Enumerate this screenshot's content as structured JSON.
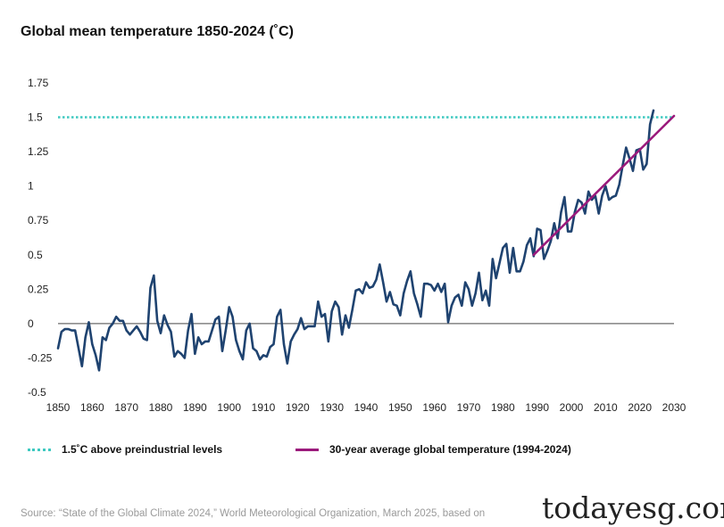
{
  "title": "Global mean temperature 1850-2024 (˚C)",
  "chart_data": {
    "type": "line",
    "title": "Global mean temperature 1850-2024 (˚C)",
    "xlabel": "",
    "ylabel": "",
    "xlim": [
      1850,
      2030
    ],
    "ylim": [
      -0.5,
      1.75
    ],
    "x_ticks": [
      "1850",
      "1860",
      "1870",
      "1880",
      "1890",
      "1900",
      "1910",
      "1920",
      "1930",
      "1940",
      "1950",
      "1960",
      "1970",
      "1980",
      "1990",
      "2000",
      "2010",
      "2020",
      "2030"
    ],
    "y_ticks": [
      "1.75",
      "1.5",
      "1.25",
      "1",
      "0.75",
      "0.5",
      "0.25",
      "0",
      "-0.25",
      "-0.5"
    ],
    "threshold": {
      "name": "1.5˚C above preindustrial levels",
      "value": 1.5,
      "color": "#3ec9c0"
    },
    "trend": {
      "name": "30-year average global temperature (1994-2024)",
      "x": [
        1989,
        2030
      ],
      "y": [
        0.5,
        1.51
      ],
      "color": "#9b1a7c"
    },
    "series": [
      {
        "name": "Global mean temperature",
        "color": "#1f4370",
        "x_start": 1850,
        "values": [
          -0.18,
          -0.06,
          -0.04,
          -0.04,
          -0.05,
          -0.05,
          -0.18,
          -0.31,
          -0.1,
          0.01,
          -0.15,
          -0.23,
          -0.34,
          -0.1,
          -0.12,
          -0.03,
          0.0,
          0.05,
          0.02,
          0.02,
          -0.05,
          -0.08,
          -0.05,
          -0.02,
          -0.06,
          -0.11,
          -0.12,
          0.26,
          0.35,
          0.02,
          -0.07,
          0.06,
          -0.01,
          -0.06,
          -0.24,
          -0.2,
          -0.22,
          -0.25,
          -0.05,
          0.07,
          -0.22,
          -0.1,
          -0.15,
          -0.13,
          -0.13,
          -0.05,
          0.03,
          0.05,
          -0.2,
          -0.05,
          0.12,
          0.05,
          -0.12,
          -0.2,
          -0.26,
          -0.05,
          0.0,
          -0.18,
          -0.2,
          -0.26,
          -0.23,
          -0.24,
          -0.17,
          -0.15,
          0.05,
          0.1,
          -0.15,
          -0.29,
          -0.13,
          -0.08,
          -0.04,
          0.04,
          -0.04,
          -0.02,
          -0.02,
          -0.02,
          0.16,
          0.05,
          0.07,
          -0.13,
          0.09,
          0.16,
          0.12,
          -0.08,
          0.06,
          -0.03,
          0.1,
          0.24,
          0.25,
          0.22,
          0.3,
          0.26,
          0.27,
          0.32,
          0.43,
          0.3,
          0.16,
          0.23,
          0.14,
          0.13,
          0.06,
          0.22,
          0.31,
          0.38,
          0.22,
          0.14,
          0.05,
          0.29,
          0.29,
          0.28,
          0.24,
          0.29,
          0.23,
          0.29,
          0.01,
          0.13,
          0.19,
          0.21,
          0.13,
          0.3,
          0.25,
          0.13,
          0.22,
          0.37,
          0.17,
          0.24,
          0.13,
          0.47,
          0.33,
          0.44,
          0.55,
          0.58,
          0.37,
          0.55,
          0.38,
          0.38,
          0.45,
          0.57,
          0.62,
          0.49,
          0.69,
          0.68,
          0.47,
          0.53,
          0.6,
          0.73,
          0.62,
          0.81,
          0.92,
          0.67,
          0.67,
          0.81,
          0.9,
          0.88,
          0.8,
          0.96,
          0.9,
          0.93,
          0.8,
          0.93,
          1.0,
          0.9,
          0.92,
          0.93,
          1.01,
          1.15,
          1.28,
          1.2,
          1.11,
          1.26,
          1.27,
          1.12,
          1.16,
          1.45,
          1.55
        ]
      }
    ]
  },
  "legend": {
    "threshold_label": "1.5˚C above preindustrial levels",
    "trend_label": "30-year average global temperature (1994-2024)"
  },
  "source": "Source: “State of the Global Climate 2024,” World Meteorological Organization, March 2025,  based on",
  "watermark": "todayesg.com"
}
